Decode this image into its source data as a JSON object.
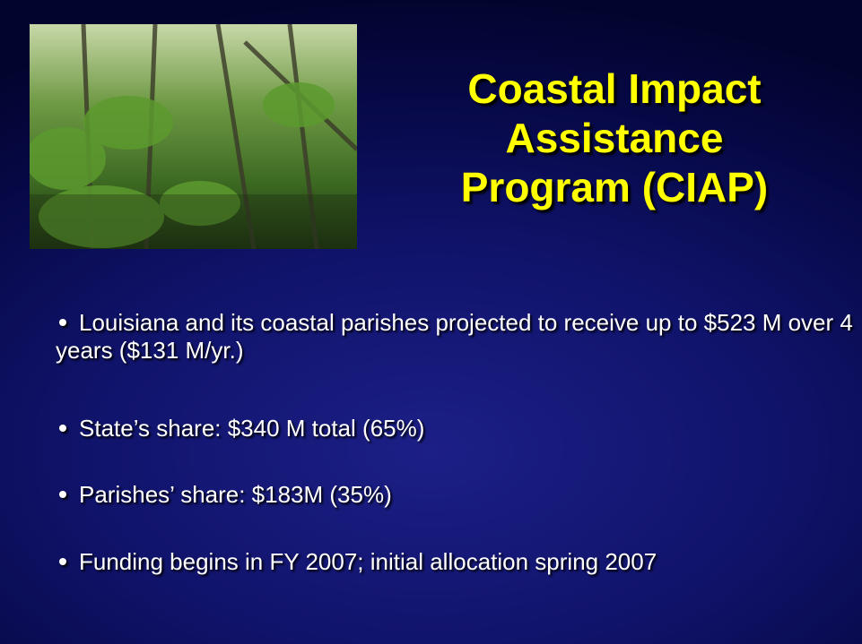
{
  "title": "Coastal Impact Assistance Program (CIAP)",
  "bullets": [
    "Louisiana and its coastal parishes projected to receive up to $523 M over 4 years ($131 M/yr.)",
    "State’s share: $340 M total (65%)",
    "Parishes’ share: $183M (35%)",
    "Funding begins in FY 2007; initial allocation spring 2007"
  ]
}
